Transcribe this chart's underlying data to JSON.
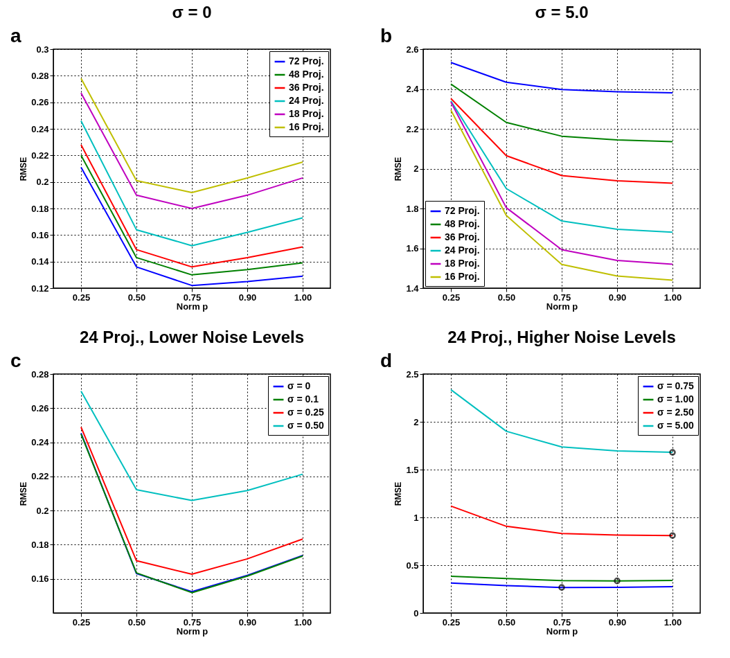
{
  "chart_data": [
    {
      "type": "line",
      "title": "σ = 0",
      "xlabel": "Norm p",
      "ylabel": "RMSE",
      "annotations": [
        "a"
      ],
      "categories": [
        "0.25",
        "0.50",
        "0.75",
        "0.90",
        "1.00"
      ],
      "ylim": [
        0.12,
        0.3
      ],
      "yticks": [
        0.12,
        0.14,
        0.16,
        0.18,
        0.2,
        0.22,
        0.24,
        0.26,
        0.28,
        0.3
      ],
      "grid": true,
      "legend": "top right",
      "series": [
        {
          "name": "72 Proj.",
          "color": "#0000ff",
          "values": [
            0.211,
            0.136,
            0.122,
            0.125,
            0.129
          ]
        },
        {
          "name": "48 Proj.",
          "color": "#008000",
          "values": [
            0.22,
            0.143,
            0.13,
            0.134,
            0.139
          ]
        },
        {
          "name": "36 Proj.",
          "color": "#ff0000",
          "values": [
            0.228,
            0.149,
            0.136,
            0.143,
            0.151
          ]
        },
        {
          "name": "24 Proj.",
          "color": "#00bfbf",
          "values": [
            0.246,
            0.164,
            0.152,
            0.162,
            0.173
          ]
        },
        {
          "name": "18 Proj.",
          "color": "#bf00bf",
          "values": [
            0.267,
            0.19,
            0.18,
            0.19,
            0.203
          ]
        },
        {
          "name": "16 Proj.",
          "color": "#bfbf00",
          "values": [
            0.278,
            0.201,
            0.192,
            0.203,
            0.215
          ]
        }
      ]
    },
    {
      "type": "line",
      "title": "σ = 5.0",
      "xlabel": "Norm p",
      "ylabel": "RMSE",
      "annotations": [
        "b"
      ],
      "categories": [
        "0.25",
        "0.50",
        "0.75",
        "0.90",
        "1.00"
      ],
      "ylim": [
        1.4,
        2.6
      ],
      "yticks": [
        1.4,
        1.6,
        1.8,
        2,
        2.2,
        2.4,
        2.6
      ],
      "grid": true,
      "legend": "bottom left",
      "series": [
        {
          "name": "72 Proj.",
          "color": "#0000ff",
          "values": [
            2.533,
            2.434,
            2.397,
            2.386,
            2.381
          ]
        },
        {
          "name": "48 Proj.",
          "color": "#008000",
          "values": [
            2.425,
            2.232,
            2.163,
            2.144,
            2.136
          ]
        },
        {
          "name": "36 Proj.",
          "color": "#ff0000",
          "values": [
            2.352,
            2.065,
            1.965,
            1.939,
            1.927
          ]
        },
        {
          "name": "24 Proj.",
          "color": "#00bfbf",
          "values": [
            2.34,
            1.9,
            1.737,
            1.696,
            1.681
          ]
        },
        {
          "name": "18 Proj.",
          "color": "#bf00bf",
          "values": [
            2.335,
            1.804,
            1.593,
            1.539,
            1.52
          ]
        },
        {
          "name": "16 Proj.",
          "color": "#bfbf00",
          "values": [
            2.294,
            1.765,
            1.519,
            1.461,
            1.44
          ]
        }
      ]
    },
    {
      "type": "line",
      "title": "24 Proj., Lower Noise Levels",
      "xlabel": "Norm p",
      "ylabel": "RMSE",
      "annotations": [
        "c"
      ],
      "categories": [
        "0.25",
        "0.50",
        "0.75",
        "0.90",
        "1.00"
      ],
      "ylim": [
        0.14,
        0.28
      ],
      "yticks": [
        0.16,
        0.18,
        0.2,
        0.22,
        0.24,
        0.26,
        0.28
      ],
      "grid": true,
      "legend": "top right",
      "series": [
        {
          "name": "σ = 0",
          "color": "#0000ff",
          "values": [
            0.2454,
            0.1631,
            0.1525,
            0.162,
            0.1737
          ]
        },
        {
          "name": "σ = 0.1",
          "color": "#008000",
          "values": [
            0.2448,
            0.1635,
            0.1519,
            0.1616,
            0.1734
          ]
        },
        {
          "name": "σ = 0.25",
          "color": "#ff0000",
          "values": [
            0.2489,
            0.1706,
            0.1627,
            0.1717,
            0.1833
          ]
        },
        {
          "name": "σ = 0.50",
          "color": "#00bfbf",
          "values": [
            0.27,
            0.2122,
            0.2059,
            0.2117,
            0.2213
          ]
        }
      ]
    },
    {
      "type": "line",
      "title": "24 Proj., Higher Noise Levels",
      "xlabel": "Norm p",
      "ylabel": "RMSE",
      "annotations": [
        "d"
      ],
      "categories": [
        "0.25",
        "0.50",
        "0.75",
        "0.90",
        "1.00"
      ],
      "ylim": [
        0,
        2.5
      ],
      "yticks": [
        0,
        0.5,
        1,
        1.5,
        2,
        2.5
      ],
      "grid": true,
      "legend": "top right",
      "series": [
        {
          "name": "σ = 0.75",
          "color": "#0000ff",
          "values": [
            0.313,
            0.287,
            0.267,
            0.269,
            0.276
          ]
        },
        {
          "name": "σ = 1.00",
          "color": "#008000",
          "values": [
            0.384,
            0.36,
            0.338,
            0.336,
            0.34
          ]
        },
        {
          "name": "σ = 2.50",
          "color": "#ff0000",
          "values": [
            1.119,
            0.907,
            0.832,
            0.815,
            0.81
          ]
        },
        {
          "name": "σ = 5.00",
          "color": "#00bfbf",
          "values": [
            2.336,
            1.901,
            1.737,
            1.696,
            1.681
          ]
        },
        {
          "type": "scatter",
          "marker": "circle",
          "color": "#000000",
          "x": [
            "0.75",
            "0.90",
            "1.00",
            "1.00"
          ],
          "values": [
            0.267,
            0.336,
            0.81,
            1.681
          ]
        }
      ]
    }
  ]
}
